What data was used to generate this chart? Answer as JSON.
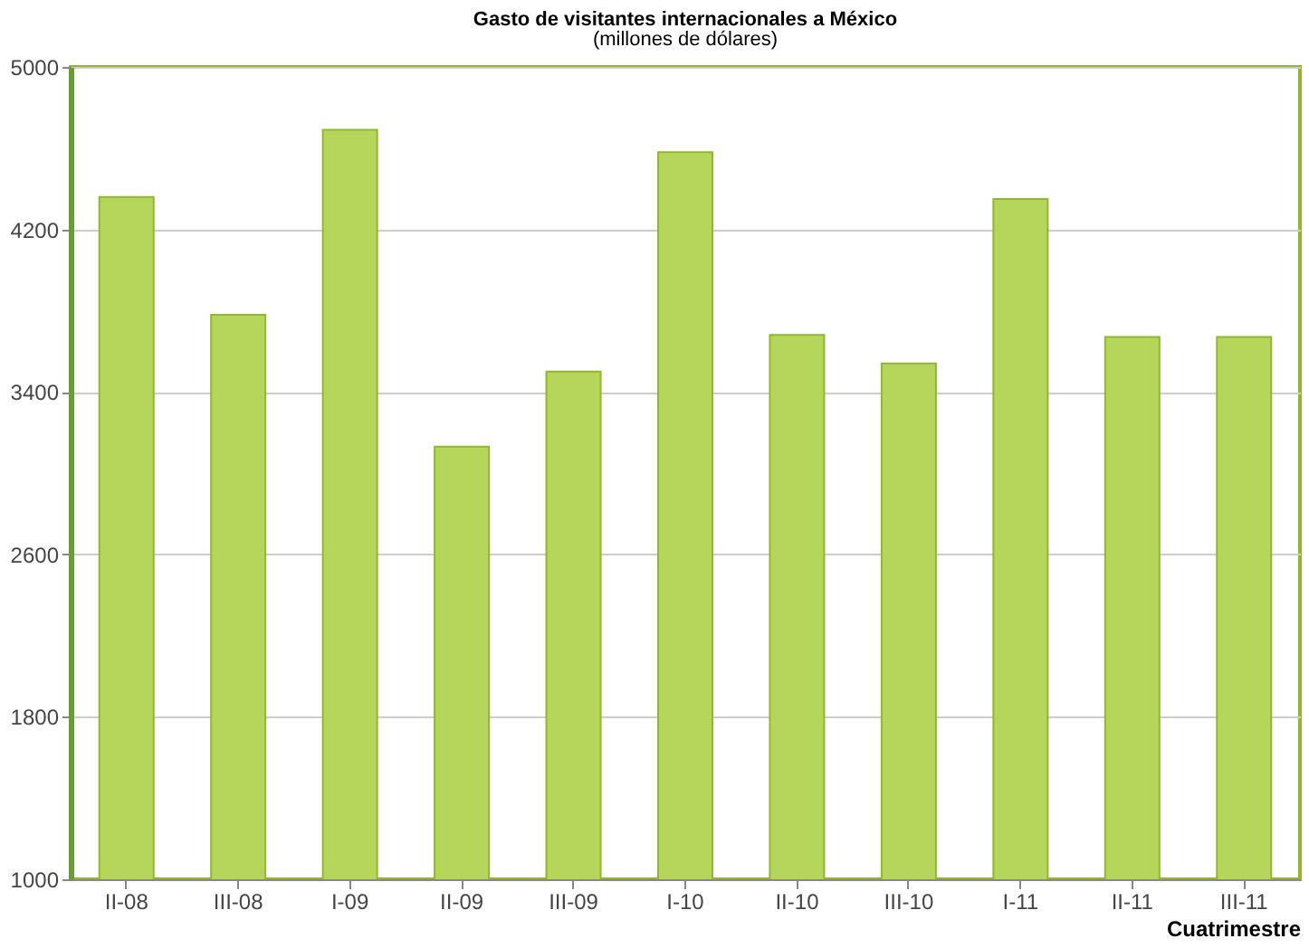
{
  "chart_data": {
    "type": "bar",
    "title": "Gasto de visitantes internacionales a México",
    "subtitle": "(millones de dólares)",
    "xlabel": "Cuatrimestre",
    "categories": [
      "II-08",
      "III-08",
      "I-09",
      "II-09",
      "III-09",
      "I-10",
      "II-10",
      "III-10",
      "I-11",
      "II-11",
      "III-11"
    ],
    "values": [
      4360,
      3780,
      4690,
      3130,
      3500,
      4580,
      3680,
      3540,
      4350,
      3670,
      3670
    ],
    "color": "#b5d65a",
    "ylim": [
      1000,
      5000
    ],
    "yticks": [
      1000,
      1800,
      2600,
      3400,
      4200,
      5000
    ],
    "grid": "y"
  }
}
